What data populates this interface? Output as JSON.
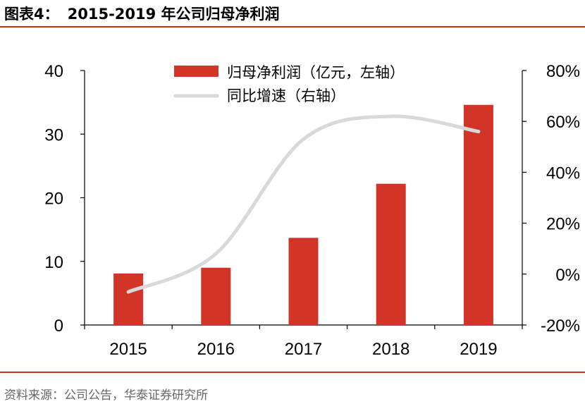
{
  "header": {
    "label": "图表4：",
    "title": "2015-2019 年公司归母净利润"
  },
  "footer": {
    "source": "资料来源：公司公告，华泰证券研究所"
  },
  "colors": {
    "accent": "#c8321e",
    "bar": "#d33428",
    "line": "#d9d9d9",
    "axis": "#000000"
  },
  "chart_data": {
    "type": "bar",
    "categories": [
      "2015",
      "2016",
      "2017",
      "2018",
      "2019"
    ],
    "series": [
      {
        "name": "归母净利润（亿元，左轴）",
        "type": "bar",
        "axis": "left",
        "values": [
          8.1,
          9.0,
          13.7,
          22.2,
          34.6
        ]
      },
      {
        "name": "同比增速（右轴）",
        "type": "line",
        "axis": "right",
        "values": [
          -7,
          8,
          53,
          62,
          56
        ]
      }
    ],
    "ylim": [
      0,
      40
    ],
    "y_ticks": [
      "0",
      "10",
      "20",
      "30",
      "40"
    ],
    "y2lim": [
      -20,
      80
    ],
    "y2_ticks": [
      "-20%",
      "0%",
      "20%",
      "40%",
      "60%",
      "80%"
    ],
    "grid": false,
    "legend": "top-center"
  }
}
